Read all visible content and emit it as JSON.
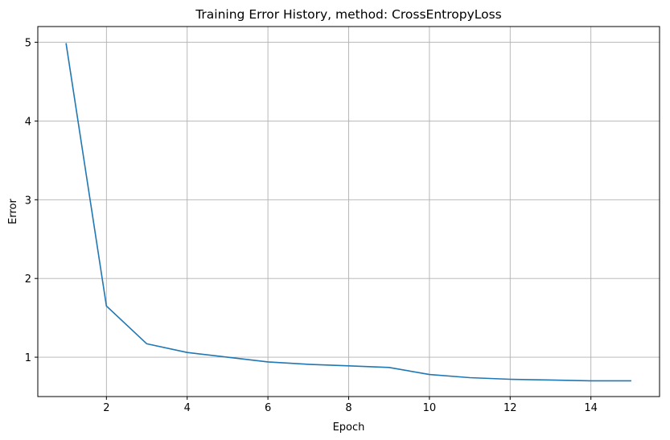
{
  "chart_data": {
    "type": "line",
    "title": "Training Error History, method: CrossEntropyLoss",
    "xlabel": "Epoch",
    "ylabel": "Error",
    "xlim": [
      0.3,
      15.7
    ],
    "ylim": [
      0.5,
      5.2
    ],
    "xticks": [
      2,
      4,
      6,
      8,
      10,
      12,
      14
    ],
    "yticks": [
      1,
      2,
      3,
      4,
      5
    ],
    "grid": true,
    "series": [
      {
        "x": [
          1,
          2,
          3,
          4,
          5,
          6,
          7,
          8,
          9,
          10,
          11,
          12,
          13,
          14,
          15
        ],
        "y": [
          4.99,
          1.65,
          1.17,
          1.06,
          1.0,
          0.94,
          0.91,
          0.89,
          0.87,
          0.78,
          0.74,
          0.72,
          0.71,
          0.7,
          0.7
        ],
        "color": "#1f77b4"
      }
    ]
  }
}
